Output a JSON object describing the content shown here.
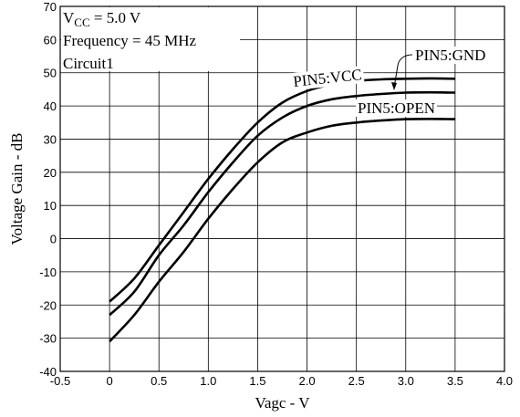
{
  "chart_data": {
    "type": "line",
    "title": "",
    "xlabel": "Vagc - V",
    "ylabel": "Voltage Gain - dB",
    "xlim": [
      -0.5,
      4.0
    ],
    "ylim": [
      -40,
      70
    ],
    "x_ticks": [
      "-0.5",
      "0",
      "0.5",
      "1.0",
      "1.5",
      "2.0",
      "2.5",
      "3.0",
      "3.5",
      "4.0"
    ],
    "y_ticks": [
      "-40",
      "-30",
      "-20",
      "-10",
      "0",
      "10",
      "20",
      "30",
      "40",
      "50",
      "60",
      "70"
    ],
    "grid": true,
    "annotations": {
      "vcc_prefix": "V",
      "vcc_sub": "CC",
      "vcc_value": " = 5.0 V",
      "frequency": "Frequency = 45 MHz",
      "circuit": "Circuit1"
    },
    "series": [
      {
        "name": "PIN5:VCC",
        "x": [
          0,
          0.25,
          0.5,
          0.75,
          1.0,
          1.25,
          1.5,
          1.75,
          2.0,
          2.25,
          2.5,
          2.75,
          3.0,
          3.25,
          3.5
        ],
        "y": [
          -19,
          -12,
          -2,
          8,
          18,
          27,
          35,
          41,
          44.5,
          46.5,
          47.5,
          48,
          48.2,
          48.3,
          48.2
        ]
      },
      {
        "name": "PIN5:GND",
        "x": [
          0,
          0.25,
          0.5,
          0.75,
          1.0,
          1.25,
          1.5,
          1.75,
          2.0,
          2.25,
          2.5,
          2.75,
          3.0,
          3.25,
          3.5
        ],
        "y": [
          -23,
          -16,
          -5,
          4,
          14,
          23,
          31,
          36.5,
          40,
          42,
          43,
          43.6,
          44,
          44.1,
          44
        ]
      },
      {
        "name": "PIN5:OPEN",
        "x": [
          0,
          0.25,
          0.5,
          0.75,
          1.0,
          1.25,
          1.5,
          1.75,
          2.0,
          2.25,
          2.5,
          2.75,
          3.0,
          3.25,
          3.5
        ],
        "y": [
          -31,
          -23,
          -13,
          -4,
          6,
          15,
          23,
          29,
          32,
          34,
          35,
          35.6,
          36,
          36.1,
          36
        ]
      }
    ]
  }
}
